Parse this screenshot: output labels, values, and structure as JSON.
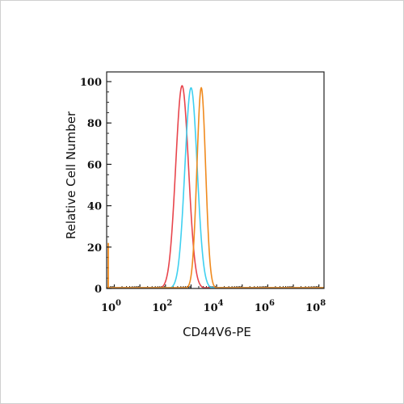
{
  "chart_data": {
    "type": "line",
    "xlabel": "CD44V6-PE",
    "ylabel": "Relative Cell Number",
    "xscale": "log",
    "xlim_log10": [
      -0.3,
      8.2
    ],
    "ylim": [
      0,
      100
    ],
    "grid": false,
    "x_ticks": [
      {
        "base": "10",
        "exp": "0"
      },
      {
        "base": "10",
        "exp": "2"
      },
      {
        "base": "10",
        "exp": "4"
      },
      {
        "base": "10",
        "exp": "6"
      },
      {
        "base": "10",
        "exp": "8"
      }
    ],
    "y_ticks": [
      "0",
      "20",
      "40",
      "60",
      "80",
      "100"
    ],
    "series": [
      {
        "color": "#e8454c",
        "peak_log10": 2.65,
        "peak_y": 98,
        "width": 0.25
      },
      {
        "color": "#3fd0f0",
        "peak_log10": 3.0,
        "peak_y": 97,
        "width": 0.24
      },
      {
        "color": "#f08a1e",
        "peak_log10": 3.4,
        "peak_y": 97,
        "width": 0.17
      }
    ]
  }
}
